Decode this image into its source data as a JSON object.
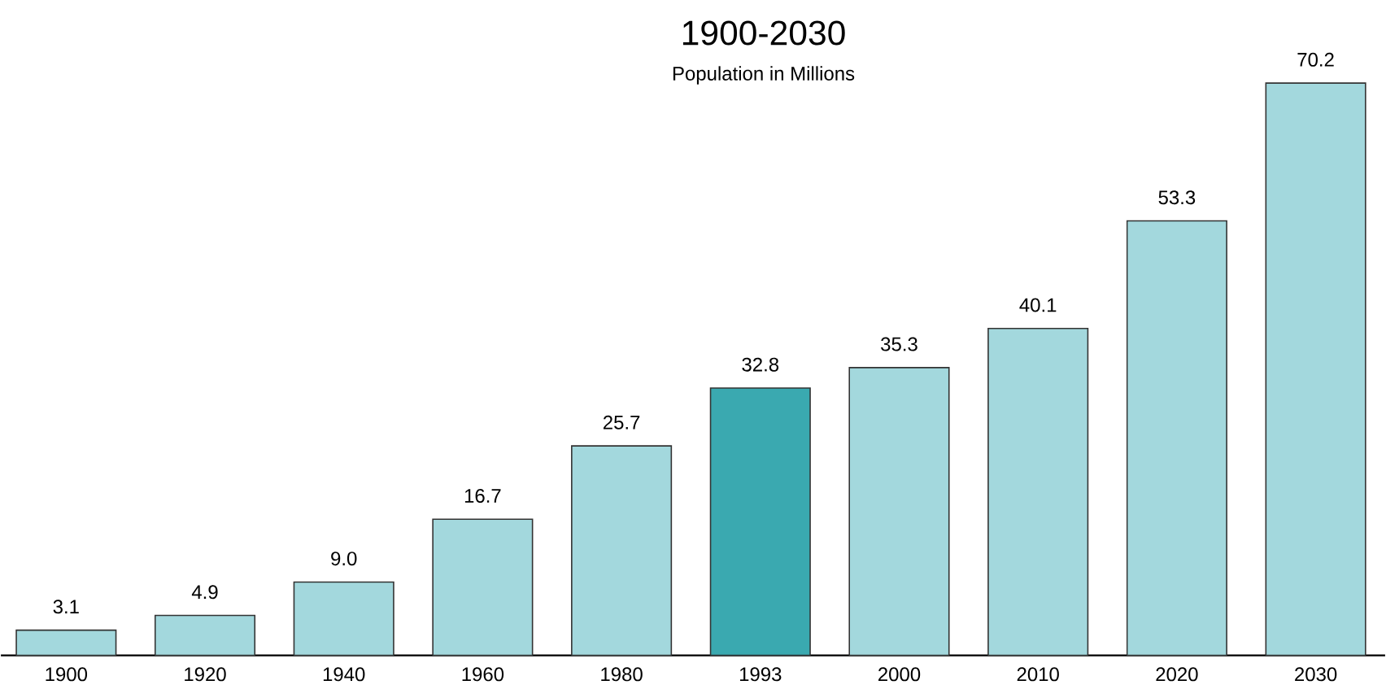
{
  "chart_data": {
    "type": "bar",
    "title": "1900-2030",
    "subtitle": "Population in Millions",
    "categories": [
      "1900",
      "1920",
      "1940",
      "1960",
      "1980",
      "1993",
      "2000",
      "2010",
      "2020",
      "2030"
    ],
    "values": [
      3.1,
      4.9,
      9.0,
      16.7,
      25.7,
      32.8,
      35.3,
      40.1,
      53.3,
      70.2
    ],
    "value_labels": [
      "3.1",
      "4.9",
      "9.0",
      "16.7",
      "25.7",
      "32.8",
      "35.3",
      "40.1",
      "53.3",
      "70.2"
    ],
    "colors": [
      "#a3d8dd",
      "#a3d8dd",
      "#a3d8dd",
      "#a3d8dd",
      "#a3d8dd",
      "#3aa9b0",
      "#a3d8dd",
      "#a3d8dd",
      "#a3d8dd",
      "#a3d8dd"
    ]
  }
}
